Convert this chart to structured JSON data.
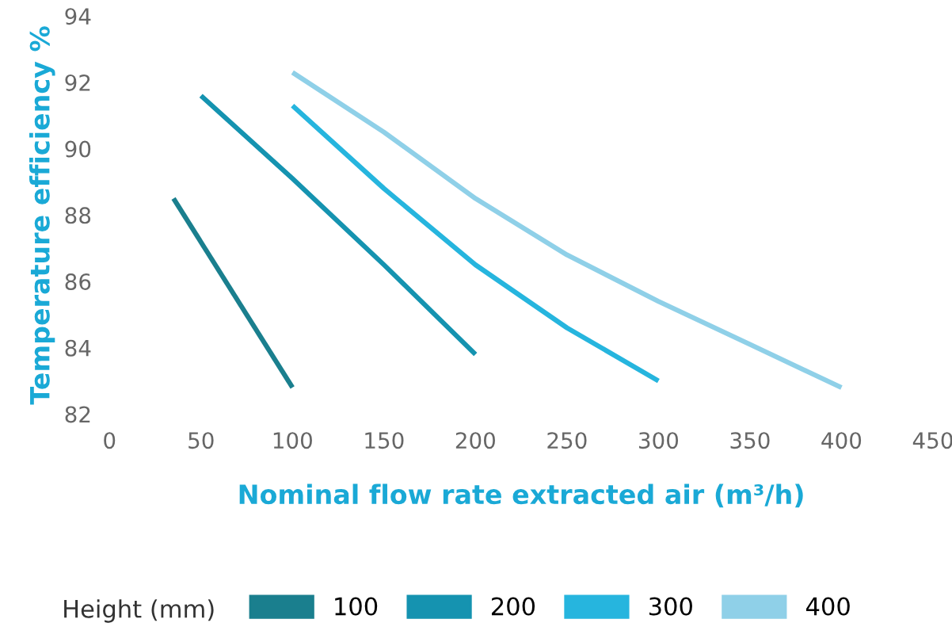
{
  "chart_data": {
    "type": "line",
    "xlabel": "Nominal flow rate extracted air (m³/h)",
    "ylabel": "Temperature efficiency %",
    "legend_title": "Height (mm)",
    "xlim": [
      0,
      450
    ],
    "xticks": [
      0,
      50,
      100,
      150,
      200,
      250,
      300,
      350,
      400,
      450
    ],
    "ylim": [
      82,
      94
    ],
    "yticks": [
      82,
      84,
      86,
      88,
      90,
      92,
      94
    ],
    "grid": false,
    "legend": "bottom",
    "marker": "none",
    "line_style": "solid",
    "series": [
      {
        "name": "100",
        "color": "#1a7f8e",
        "x": [
          35,
          100
        ],
        "values": [
          88.5,
          82.8
        ]
      },
      {
        "name": "200",
        "color": "#1593b0",
        "x": [
          50,
          100,
          150,
          200
        ],
        "values": [
          91.6,
          89.1,
          86.5,
          83.8
        ]
      },
      {
        "name": "300",
        "color": "#26b5de",
        "x": [
          100,
          150,
          200,
          250,
          300
        ],
        "values": [
          91.3,
          88.8,
          86.5,
          84.6,
          83.0
        ]
      },
      {
        "name": "400",
        "color": "#8fd0e8",
        "x": [
          100,
          150,
          200,
          250,
          300,
          350,
          400
        ],
        "values": [
          92.3,
          90.5,
          88.5,
          86.8,
          85.4,
          84.1,
          82.8
        ]
      }
    ]
  }
}
